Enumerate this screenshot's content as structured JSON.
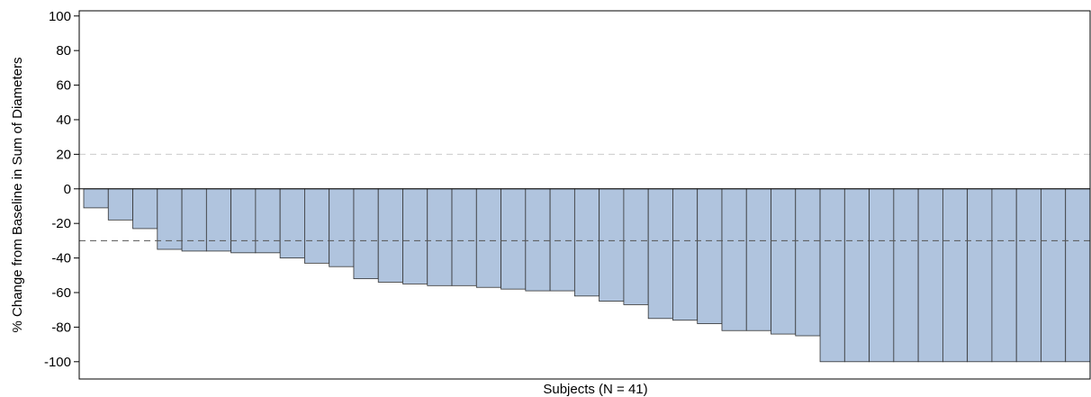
{
  "chart_data": {
    "type": "bar",
    "title": "",
    "xlabel": "Subjects (N = 41)",
    "ylabel": "% Change from Baseline in Sum of Diameters",
    "ylim": [
      -110,
      103
    ],
    "yticks": [
      100,
      80,
      60,
      40,
      20,
      0,
      -20,
      -40,
      -60,
      -80,
      -100
    ],
    "reference_lines": [
      {
        "value": 20,
        "style": "dashed",
        "color": "#cccccc"
      },
      {
        "value": -30,
        "style": "dashed",
        "color": "#555555"
      }
    ],
    "bar_color": "#b0c4de",
    "bar_edge_color": "#333333",
    "grid": false,
    "values": [
      -11,
      -18,
      -23,
      -35,
      -36,
      -36,
      -37,
      -37,
      -40,
      -43,
      -45,
      -52,
      -54,
      -55,
      -56,
      -56,
      -57,
      -58,
      -59,
      -59,
      -62,
      -65,
      -67,
      -75,
      -76,
      -78,
      -82,
      -82,
      -84,
      -85,
      -100,
      -100,
      -100,
      -100,
      -100,
      -100,
      -100,
      -100,
      -100,
      -100,
      -100
    ]
  }
}
